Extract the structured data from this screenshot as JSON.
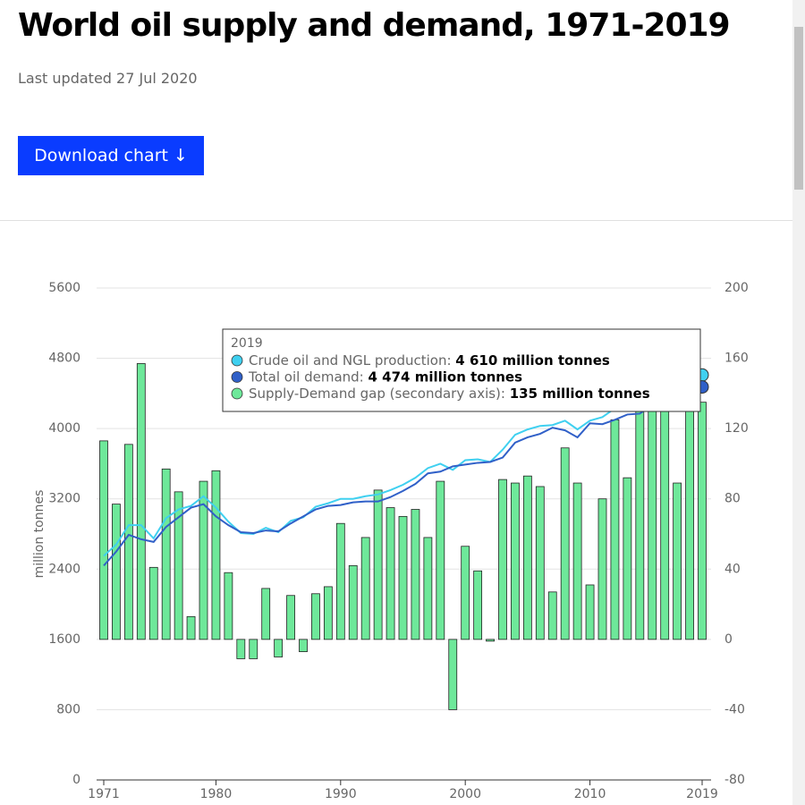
{
  "header": {
    "title": "World oil supply and demand, 1971-2019",
    "subtitle": "Last updated 27 Jul 2020",
    "button": "Download chart ↓"
  },
  "tooltip": {
    "year": "2019",
    "items": [
      {
        "label": "Crude oil and NGL production:",
        "value": "4 610 million tonnes"
      },
      {
        "label": "Total oil demand:",
        "value": "4 474 million tonnes"
      },
      {
        "label": "Supply-Demand gap (secondary axis):",
        "value": "135 million tonnes"
      }
    ]
  },
  "chart_data": {
    "type": "bar-line",
    "ylabel": "million tonnes",
    "x": [
      1971,
      1972,
      1973,
      1974,
      1975,
      1976,
      1977,
      1978,
      1979,
      1980,
      1981,
      1982,
      1983,
      1984,
      1985,
      1986,
      1987,
      1988,
      1989,
      1990,
      1991,
      1992,
      1993,
      1994,
      1995,
      1996,
      1997,
      1998,
      1999,
      2000,
      2001,
      2002,
      2003,
      2004,
      2005,
      2006,
      2007,
      2008,
      2009,
      2010,
      2011,
      2012,
      2013,
      2014,
      2015,
      2016,
      2017,
      2018,
      2019
    ],
    "xlim": [
      1971,
      2019
    ],
    "xticks": [
      1971,
      1980,
      1990,
      2000,
      2010,
      2019
    ],
    "ylim": [
      0,
      5600
    ],
    "yticks": [
      0,
      800,
      1600,
      2400,
      3200,
      4000,
      4800,
      5600
    ],
    "y2lim": [
      -80,
      200
    ],
    "y2ticks": [
      -80,
      -40,
      0,
      40,
      80,
      120,
      160,
      200
    ],
    "grid": true,
    "series": [
      {
        "name": "Crude oil and NGL production",
        "type": "line",
        "color": "#3fd0f0",
        "values": [
          2550,
          2680,
          2900,
          2900,
          2750,
          2980,
          3080,
          3120,
          3230,
          3100,
          2940,
          2810,
          2800,
          2870,
          2820,
          2950,
          2990,
          3110,
          3150,
          3200,
          3200,
          3230,
          3250,
          3300,
          3360,
          3440,
          3550,
          3600,
          3530,
          3640,
          3650,
          3620,
          3760,
          3930,
          3990,
          4030,
          4040,
          4090,
          3990,
          4090,
          4130,
          4230,
          4250,
          4310,
          4420,
          4430,
          4480,
          4600,
          4610
        ]
      },
      {
        "name": "Total oil demand",
        "type": "line",
        "color": "#3060c8",
        "values": [
          2440,
          2600,
          2790,
          2740,
          2710,
          2880,
          2990,
          3100,
          3140,
          3000,
          2900,
          2820,
          2810,
          2840,
          2830,
          2920,
          3000,
          3080,
          3120,
          3130,
          3160,
          3170,
          3170,
          3220,
          3290,
          3370,
          3490,
          3510,
          3570,
          3590,
          3610,
          3620,
          3670,
          3840,
          3900,
          3940,
          4010,
          3980,
          3900,
          4060,
          4050,
          4100,
          4160,
          4170,
          4270,
          4290,
          4390,
          4450,
          4474
        ]
      },
      {
        "name": "Supply-Demand gap",
        "type": "bar",
        "axis": "y2",
        "color": "#6ee89a",
        "values": [
          113,
          77,
          111,
          157,
          41,
          97,
          84,
          13,
          90,
          96,
          38,
          -11,
          -11,
          29,
          -10,
          25,
          -7,
          26,
          30,
          66,
          42,
          58,
          85,
          75,
          70,
          74,
          58,
          90,
          -40,
          53,
          39,
          -1,
          91,
          89,
          93,
          87,
          27,
          109,
          89,
          31,
          80,
          125,
          92,
          140,
          150,
          145,
          89,
          149,
          135
        ]
      }
    ]
  }
}
